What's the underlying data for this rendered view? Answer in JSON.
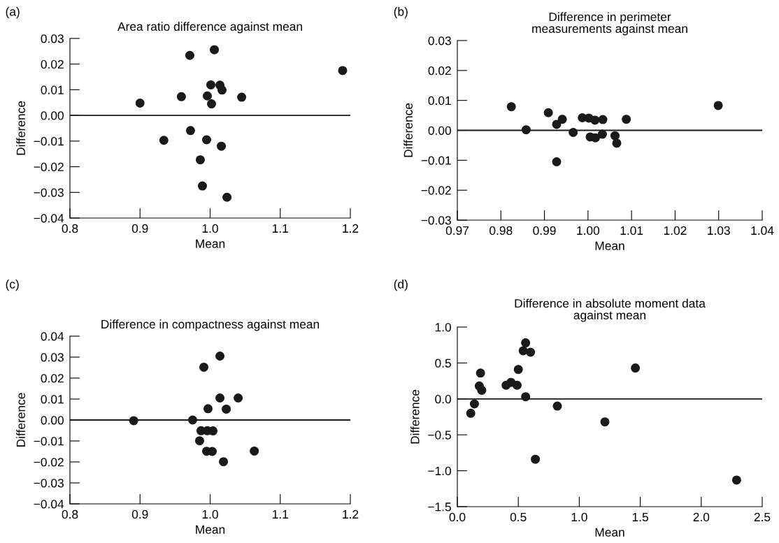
{
  "chart_data": [
    {
      "type": "scatter",
      "title": "Area ratio difference against mean",
      "xlabel": "Mean",
      "ylabel": "Difference",
      "annotations": [
        "(a)"
      ],
      "series": [
        {
          "color": "#1a1a1a",
          "x": [
            0.9,
            0.971,
            1.006,
            1.189,
            1.001,
            1.014,
            1.017,
            0.959,
            0.996,
            1.002,
            1.045,
            0.972,
            0.934,
            0.995,
            1.016,
            0.986,
            0.989,
            1.024
          ],
          "values": [
            0.0048,
            0.0234,
            0.0256,
            0.0175,
            0.0119,
            0.0118,
            0.0099,
            0.0073,
            0.0076,
            0.0045,
            0.0071,
            -0.0059,
            -0.0097,
            -0.0095,
            -0.012,
            -0.0173,
            -0.0275,
            -0.0319
          ]
        }
      ],
      "xlim": [
        0.8,
        1.2
      ],
      "xticks": [
        {
          "value": 0.8,
          "label": "0.8"
        },
        {
          "value": 0.9,
          "label": "0.9"
        },
        {
          "value": 1.0,
          "label": "1.0"
        },
        {
          "value": 1.1,
          "label": "1.1"
        },
        {
          "value": 1.2,
          "label": "1.2"
        }
      ],
      "ylim": [
        -0.04,
        0.03
      ],
      "yticks": [
        {
          "value": -0.04,
          "label": "−0.04"
        },
        {
          "value": -0.03,
          "label": "−0.03"
        },
        {
          "value": -0.02,
          "label": "−0.02"
        },
        {
          "value": -0.01,
          "label": "−0.01"
        },
        {
          "value": 0.0,
          "label": "0.00"
        },
        {
          "value": 0.01,
          "label": "0.01"
        },
        {
          "value": 0.02,
          "label": "0.02"
        },
        {
          "value": 0.03,
          "label": "0.03"
        }
      ],
      "ref_lines": [
        {
          "axis": "y",
          "value": 0,
          "color": "#1a1a1a"
        }
      ],
      "marker": "circle",
      "grid": false,
      "legend": false
    },
    {
      "type": "scatter",
      "title": "Difference in perimeter\nmeasurements against mean",
      "xlabel": "Mean",
      "ylabel": "Difference",
      "annotations": [
        "(b)"
      ],
      "series": [
        {
          "color": "#1a1a1a",
          "x": [
            0.9824,
            0.9858,
            0.9909,
            0.9928,
            0.9941,
            0.9928,
            0.9966,
            0.9987,
            1.0002,
            1.0016,
            1.0034,
            1.0005,
            1.0017,
            1.0033,
            1.0062,
            1.0066,
            1.0088,
            1.0299
          ],
          "values": [
            0.0079,
            0.0002,
            0.0059,
            0.002,
            0.0037,
            -0.0105,
            -0.0007,
            0.0042,
            0.0041,
            0.0034,
            0.0036,
            -0.0022,
            -0.0025,
            -0.0013,
            -0.0018,
            -0.0043,
            0.0037,
            0.0083
          ]
        }
      ],
      "xlim": [
        0.97,
        1.04
      ],
      "xticks": [
        {
          "value": 0.97,
          "label": "0.97"
        },
        {
          "value": 0.98,
          "label": "0.98"
        },
        {
          "value": 0.99,
          "label": "0.99"
        },
        {
          "value": 1.0,
          "label": "1.00"
        },
        {
          "value": 1.01,
          "label": "1.01"
        },
        {
          "value": 1.02,
          "label": "1.02"
        },
        {
          "value": 1.03,
          "label": "1.03"
        },
        {
          "value": 1.04,
          "label": "1.04"
        }
      ],
      "ylim": [
        -0.03,
        0.03
      ],
      "yticks": [
        {
          "value": -0.03,
          "label": "−0.03"
        },
        {
          "value": -0.02,
          "label": "−0.02"
        },
        {
          "value": -0.01,
          "label": "−0.01"
        },
        {
          "value": 0.0,
          "label": "0.00"
        },
        {
          "value": 0.01,
          "label": "0.01"
        },
        {
          "value": 0.02,
          "label": "0.02"
        },
        {
          "value": 0.03,
          "label": "0.03"
        }
      ],
      "ref_lines": [
        {
          "axis": "y",
          "value": 0,
          "color": "#1a1a1a"
        }
      ],
      "marker": "circle",
      "grid": false,
      "legend": false
    },
    {
      "type": "scatter",
      "title": "Difference in compactness against mean",
      "xlabel": "Mean",
      "ylabel": "Difference",
      "annotations": [
        "(c)"
      ],
      "series": [
        {
          "color": "#1a1a1a",
          "x": [
            0.891,
            0.975,
            0.991,
            1.014,
            1.014,
            1.04,
            0.997,
            1.023,
            0.987,
            0.996,
            1.004,
            0.985,
            0.995,
            1.003,
            1.063,
            1.019
          ],
          "values": [
            -0.0003,
            0.0,
            0.0252,
            0.0305,
            0.0105,
            0.0105,
            0.0054,
            0.0052,
            -0.0051,
            -0.0051,
            -0.0052,
            -0.0099,
            -0.0149,
            -0.015,
            -0.0148,
            -0.0199
          ]
        }
      ],
      "xlim": [
        0.8,
        1.2
      ],
      "xticks": [
        {
          "value": 0.8,
          "label": "0.8"
        },
        {
          "value": 0.9,
          "label": "0.9"
        },
        {
          "value": 1.0,
          "label": "1.0"
        },
        {
          "value": 1.1,
          "label": "1.1"
        },
        {
          "value": 1.2,
          "label": "1.2"
        }
      ],
      "ylim": [
        -0.04,
        0.04
      ],
      "yticks": [
        {
          "value": -0.04,
          "label": "−0.04"
        },
        {
          "value": -0.03,
          "label": "−0.03"
        },
        {
          "value": -0.02,
          "label": "−0.02"
        },
        {
          "value": -0.01,
          "label": "−0.01"
        },
        {
          "value": 0.0,
          "label": "0.00"
        },
        {
          "value": 0.01,
          "label": "0.01"
        },
        {
          "value": 0.02,
          "label": "0.02"
        },
        {
          "value": 0.03,
          "label": "0.03"
        },
        {
          "value": 0.04,
          "label": "0.04"
        }
      ],
      "ref_lines": [
        {
          "axis": "y",
          "value": 0,
          "color": "#1a1a1a"
        }
      ],
      "marker": "circle",
      "grid": false,
      "legend": false
    },
    {
      "type": "scatter",
      "title": "Difference in absolute moment data\nagainst mean",
      "xlabel": "Mean",
      "ylabel": "Difference",
      "annotations": [
        "(d)"
      ],
      "series": [
        {
          "color": "#1a1a1a",
          "x": [
            0.11,
            0.14,
            0.18,
            0.2,
            0.19,
            0.4,
            0.44,
            0.49,
            0.5,
            0.56,
            0.54,
            0.6,
            0.56,
            0.82,
            0.64,
            1.21,
            1.46,
            2.29
          ],
          "values": [
            -0.2,
            -0.07,
            0.18,
            0.12,
            0.36,
            0.19,
            0.23,
            0.19,
            0.41,
            0.78,
            0.67,
            0.65,
            0.03,
            -0.1,
            -0.84,
            -0.32,
            0.43,
            -1.13
          ]
        }
      ],
      "xlim": [
        0.0,
        2.5
      ],
      "xticks": [
        {
          "value": 0.0,
          "label": "0.0"
        },
        {
          "value": 0.5,
          "label": "0.5"
        },
        {
          "value": 1.0,
          "label": "1.0"
        },
        {
          "value": 1.5,
          "label": "1.5"
        },
        {
          "value": 2.0,
          "label": "2.0"
        },
        {
          "value": 2.5,
          "label": "2.5"
        }
      ],
      "ylim": [
        -1.5,
        1.0
      ],
      "yticks": [
        {
          "value": -1.5,
          "label": "−1.5"
        },
        {
          "value": -1.0,
          "label": "−1.0"
        },
        {
          "value": -0.5,
          "label": "−0.5"
        },
        {
          "value": 0.0,
          "label": "0.0"
        },
        {
          "value": 0.5,
          "label": "0.5"
        },
        {
          "value": 1.0,
          "label": "1.0"
        }
      ],
      "ref_lines": [
        {
          "axis": "y",
          "value": 0,
          "color": "#1a1a1a"
        }
      ],
      "marker": "circle",
      "grid": false,
      "legend": false
    }
  ]
}
